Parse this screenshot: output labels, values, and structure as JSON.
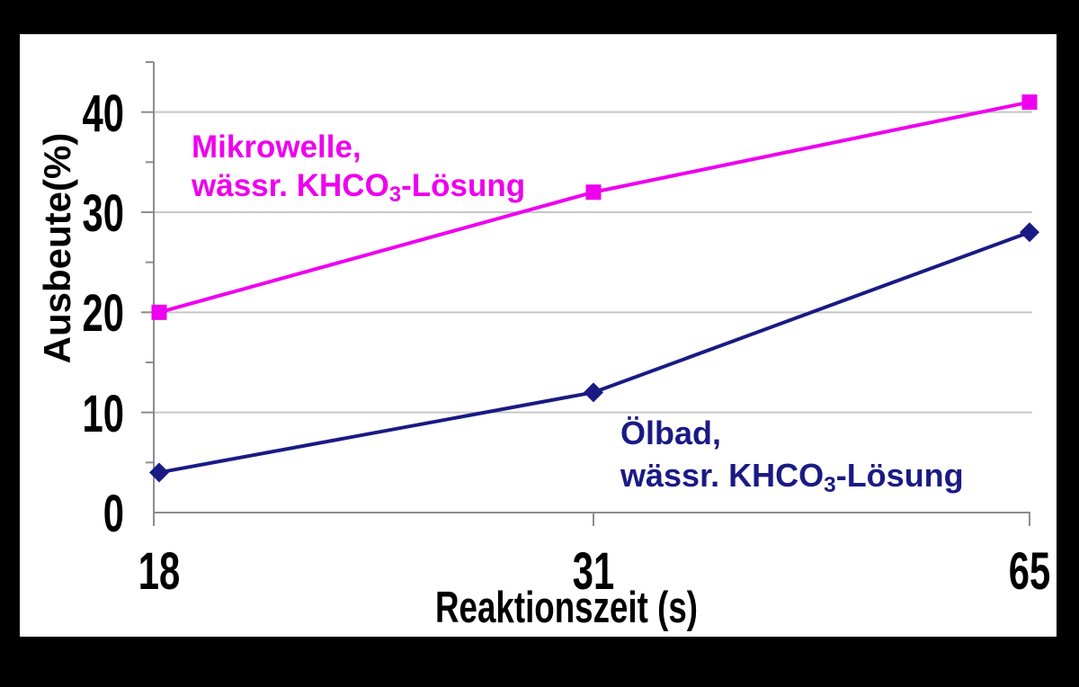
{
  "frame": {
    "background_color": "#000000",
    "chart_background_color": "#ffffff"
  },
  "chart_data": {
    "type": "line",
    "title": "",
    "xlabel": "Reaktionszeit (s)",
    "ylabel": "Ausbeute(%)",
    "categories": [
      "18",
      "31",
      "65"
    ],
    "ylim": [
      0,
      45
    ],
    "ytick_labels": [
      "0",
      "10",
      "20",
      "30",
      "40"
    ],
    "ytick_major_interval": 10,
    "ytick_minor_interval": 5,
    "grid": "horizontal major gridlines on",
    "legend_position": "inline text annotations near each line",
    "axis_color": "#8C8C8C",
    "gridline_color": "#C6C6C6",
    "text_color": "#000000",
    "series": [
      {
        "name": "Mikrowelle, wässr. KHCO3-Lösung",
        "values": [
          20,
          32,
          41
        ],
        "color": "#EE00EE",
        "marker": "square"
      },
      {
        "name": "Ölbad, wässr. KHCO3-Lösung",
        "values": [
          4,
          12,
          28
        ],
        "color": "#1A1A84",
        "marker": "diamond"
      }
    ]
  },
  "annotations": {
    "mikrowelle": {
      "line1": "Mikrowelle,",
      "line2_pre": "wässr. KHCO",
      "line2_sub": "3",
      "line2_post": "-Lösung",
      "color": "#EE00EE"
    },
    "oelbad": {
      "line1": "Ölbad,",
      "line2_pre": "wässr. KHCO",
      "line2_sub": "3",
      "line2_post": "-Lösung",
      "color": "#1A1A84"
    }
  }
}
